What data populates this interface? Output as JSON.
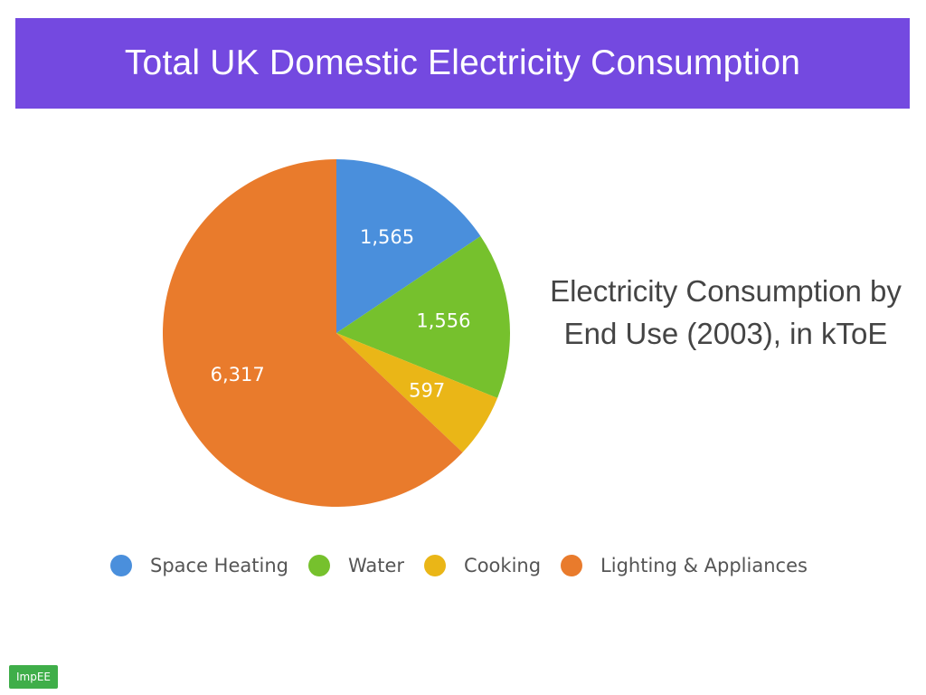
{
  "slide": {
    "title": "Total UK Domestic Electricity Consumption",
    "caption": "Electricity Consumption by End Use (2003), in kToE"
  },
  "logo": {
    "text": "ImpEE"
  },
  "chart_data": {
    "type": "pie",
    "title": "",
    "legend_position": "bottom",
    "categories": [
      "Space Heating",
      "Water",
      "Cooking",
      "Lighting & Appliances"
    ],
    "values": [
      1565,
      1556,
      597,
      6317
    ],
    "labels": [
      "1,565",
      "1,556",
      "597",
      "6,317"
    ],
    "colors": [
      "#4a8fdc",
      "#76c12d",
      "#eab617",
      "#e97b2c"
    ]
  }
}
